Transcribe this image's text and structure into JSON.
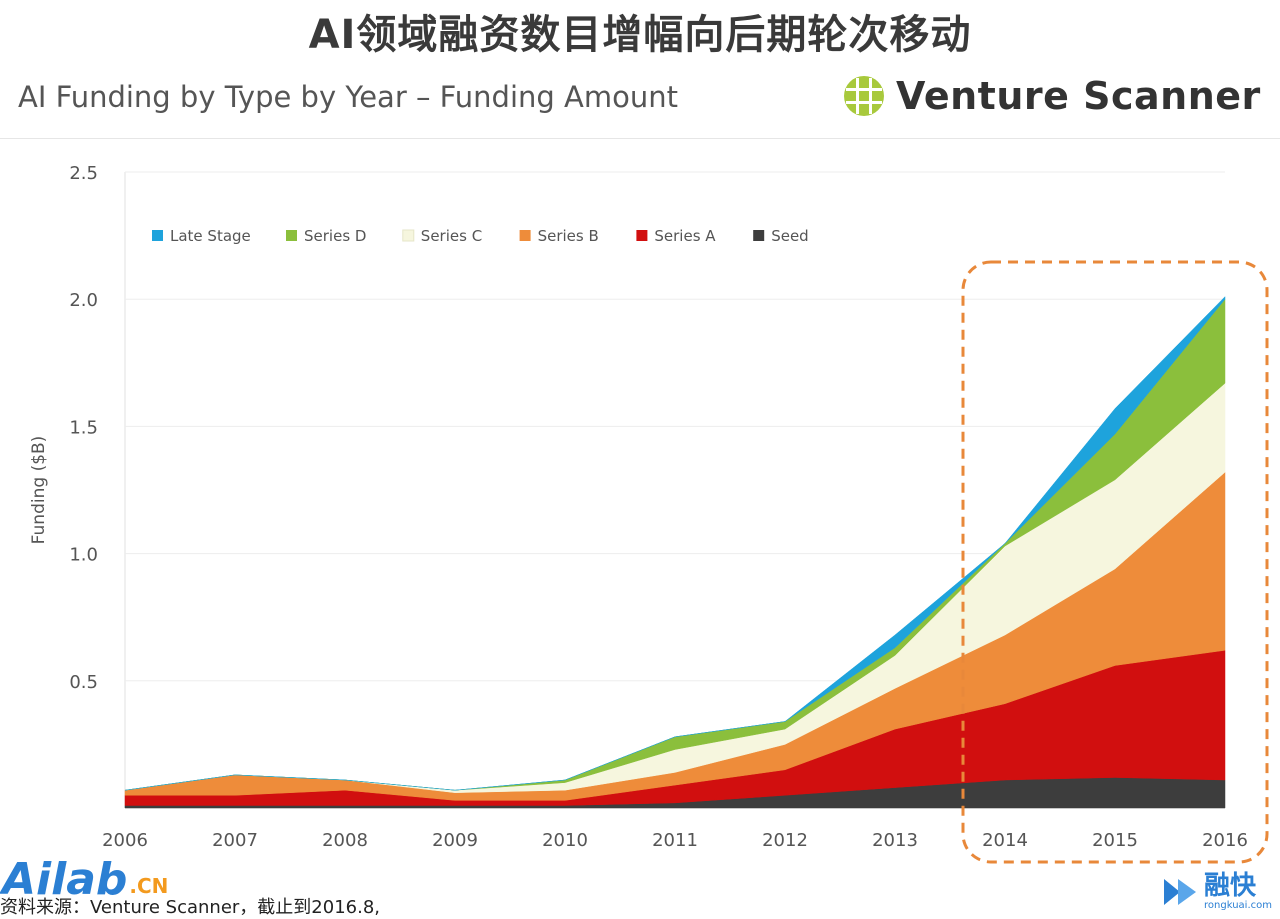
{
  "header": {
    "title": "AI领域融资数目增幅向后期轮次移动",
    "subtitle": "AI Funding by Type by Year – Funding Amount",
    "brand": "Venture Scanner"
  },
  "footer": {
    "source_note": "资料来源：Venture Scanner，截止到2016.8,",
    "watermark_left": "Ailab",
    "watermark_left_suffix": ".CN",
    "watermark_right": "融快",
    "watermark_right_url": "rongkuai.com"
  },
  "chart_data": {
    "type": "area",
    "stacked": true,
    "title": "AI Funding by Type by Year – Funding Amount",
    "ylabel": "Funding ($B)",
    "xlabel": "",
    "x": [
      "2006",
      "2007",
      "2008",
      "2009",
      "2010",
      "2011",
      "2012",
      "2013",
      "2014",
      "2015",
      "2016"
    ],
    "yticks": [
      "0.5",
      "1.0",
      "1.5",
      "2.0",
      "2.5"
    ],
    "ylim": [
      0,
      2.5
    ],
    "grid": true,
    "legend_position": "top-left",
    "highlight": {
      "from": "2014",
      "to": "2016",
      "color": "#e8883a",
      "style": "dashed"
    },
    "series": [
      {
        "name": "Seed",
        "color": "#3d3d3d",
        "values": [
          0.01,
          0.01,
          0.01,
          0.01,
          0.01,
          0.02,
          0.05,
          0.08,
          0.11,
          0.12,
          0.11
        ]
      },
      {
        "name": "Series A",
        "color": "#d10f0f",
        "values": [
          0.04,
          0.04,
          0.06,
          0.02,
          0.02,
          0.07,
          0.1,
          0.23,
          0.3,
          0.44,
          0.51
        ]
      },
      {
        "name": "Series B",
        "color": "#ee8c3a",
        "values": [
          0.02,
          0.08,
          0.04,
          0.03,
          0.04,
          0.05,
          0.1,
          0.16,
          0.27,
          0.38,
          0.7
        ]
      },
      {
        "name": "Series C",
        "color": "#f6f6de",
        "values": [
          0.0,
          0.0,
          0.0,
          0.01,
          0.03,
          0.09,
          0.06,
          0.13,
          0.35,
          0.35,
          0.35
        ]
      },
      {
        "name": "Series D",
        "color": "#8bbf3c",
        "values": [
          0.0,
          0.0,
          0.0,
          0.0,
          0.01,
          0.05,
          0.03,
          0.03,
          0.01,
          0.18,
          0.33
        ]
      },
      {
        "name": "Late Stage",
        "color": "#1ea3dc",
        "values": [
          0.0,
          0.0,
          0.0,
          0.0,
          0.0,
          0.0,
          0.0,
          0.05,
          0.0,
          0.1,
          0.01
        ]
      }
    ]
  }
}
